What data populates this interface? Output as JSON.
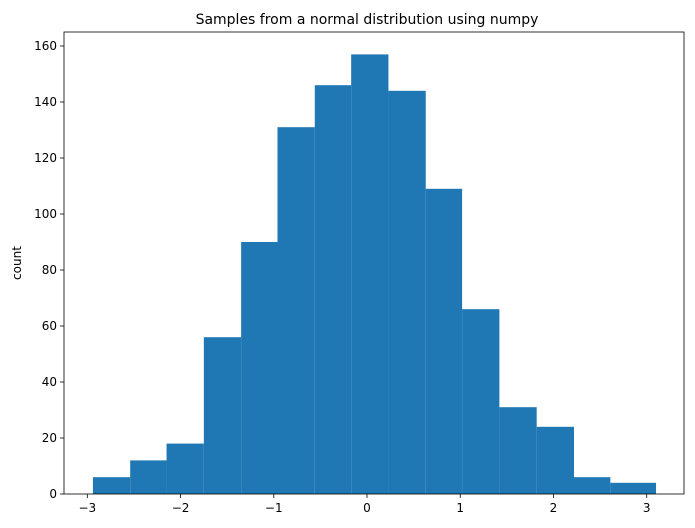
{
  "chart_data": {
    "type": "bar",
    "title": "Samples from a normal distribution using numpy",
    "xlabel": "",
    "ylabel": "count",
    "xlim": [
      -3.25,
      3.4
    ],
    "ylim": [
      0,
      165
    ],
    "grid": false,
    "legend": "none",
    "bar_color": "#1f77b4",
    "bin_edges": [
      -2.94,
      -2.54,
      -2.15,
      -1.75,
      -1.35,
      -0.96,
      -0.56,
      -0.17,
      0.23,
      0.63,
      1.02,
      1.42,
      1.82,
      2.22,
      2.61,
      3.1
    ],
    "values": [
      6,
      12,
      18,
      56,
      90,
      131,
      146,
      157,
      144,
      109,
      66,
      31,
      24,
      6,
      4
    ],
    "x_ticks": [
      -3,
      -2,
      -1,
      0,
      1,
      2,
      3
    ],
    "x_tick_labels": [
      "−3",
      "−2",
      "−1",
      "0",
      "1",
      "2",
      "3"
    ],
    "y_ticks": [
      0,
      20,
      40,
      60,
      80,
      100,
      120,
      140,
      160
    ],
    "y_tick_labels": [
      "0",
      "20",
      "40",
      "60",
      "80",
      "100",
      "120",
      "140",
      "160"
    ]
  }
}
